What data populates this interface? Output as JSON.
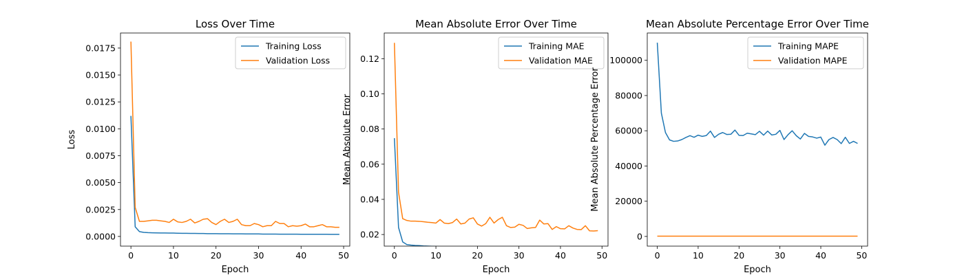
{
  "chart_data": [
    {
      "type": "line",
      "title": "Loss Over Time",
      "xlabel": "Epoch",
      "ylabel": "Loss",
      "xlim": [
        -2.45,
        51.45
      ],
      "ylim": [
        -0.0009,
        0.0189
      ],
      "xticks": [
        0,
        10,
        20,
        30,
        40,
        50
      ],
      "xtick_labels": [
        "0",
        "10",
        "20",
        "30",
        "40",
        "50"
      ],
      "yticks": [
        0.0,
        0.0025,
        0.005,
        0.0075,
        0.01,
        0.0125,
        0.015,
        0.0175
      ],
      "ytick_labels": [
        "0.0000",
        "0.0025",
        "0.0050",
        "0.0075",
        "0.0100",
        "0.0125",
        "0.0150",
        "0.0175"
      ],
      "legend": "upper-right",
      "grid": false,
      "series": [
        {
          "name": "Training Loss",
          "color": "#1f77b4",
          "x": [
            0,
            1,
            2,
            3,
            4,
            5,
            6,
            7,
            8,
            9,
            10,
            11,
            12,
            13,
            14,
            15,
            16,
            17,
            18,
            19,
            20,
            21,
            22,
            23,
            24,
            25,
            26,
            27,
            28,
            29,
            30,
            31,
            32,
            33,
            34,
            35,
            36,
            37,
            38,
            39,
            40,
            41,
            42,
            43,
            44,
            45,
            46,
            47,
            48,
            49
          ],
          "values": [
            0.0112,
            0.0009,
            0.00045,
            0.00038,
            0.00035,
            0.00034,
            0.00033,
            0.00032,
            0.00032,
            0.00031,
            0.00031,
            0.0003,
            0.00029,
            0.00029,
            0.00028,
            0.00028,
            0.00027,
            0.00027,
            0.00026,
            0.00026,
            0.00026,
            0.00025,
            0.00025,
            0.00025,
            0.00024,
            0.00024,
            0.00024,
            0.00023,
            0.00023,
            0.00023,
            0.00023,
            0.00022,
            0.00022,
            0.00022,
            0.00022,
            0.00021,
            0.00021,
            0.00021,
            0.00021,
            0.00021,
            0.0002,
            0.0002,
            0.0002,
            0.0002,
            0.0002,
            0.0002,
            0.0002,
            0.00019,
            0.00019,
            0.00019
          ]
        },
        {
          "name": "Validation Loss",
          "color": "#ff7f0e",
          "x": [
            0,
            1,
            2,
            3,
            4,
            5,
            6,
            7,
            8,
            9,
            10,
            11,
            12,
            13,
            14,
            15,
            16,
            17,
            18,
            19,
            20,
            21,
            22,
            23,
            24,
            25,
            26,
            27,
            28,
            29,
            30,
            31,
            32,
            33,
            34,
            35,
            36,
            37,
            38,
            39,
            40,
            41,
            42,
            43,
            44,
            45,
            46,
            47,
            48,
            49
          ],
          "values": [
            0.0181,
            0.0027,
            0.0014,
            0.0014,
            0.00145,
            0.0015,
            0.0015,
            0.00145,
            0.0014,
            0.0013,
            0.0016,
            0.00135,
            0.0013,
            0.0014,
            0.0016,
            0.00125,
            0.0014,
            0.0016,
            0.00165,
            0.0013,
            0.0011,
            0.0014,
            0.0016,
            0.0013,
            0.0014,
            0.0016,
            0.0011,
            0.001,
            0.001,
            0.0012,
            0.0011,
            0.0009,
            0.001,
            0.001,
            0.0014,
            0.0012,
            0.0012,
            0.0009,
            0.001,
            0.00095,
            0.001,
            0.00115,
            0.0009,
            0.0009,
            0.001,
            0.0011,
            0.0009,
            0.0009,
            0.00085,
            0.00085
          ]
        }
      ]
    },
    {
      "type": "line",
      "title": "Mean Absolute Error Over Time",
      "xlabel": "Epoch",
      "ylabel": "Mean Absolute Error",
      "xlim": [
        -2.45,
        51.45
      ],
      "ylim": [
        0.0134,
        0.1346
      ],
      "xticks": [
        0,
        10,
        20,
        30,
        40,
        50
      ],
      "xtick_labels": [
        "0",
        "10",
        "20",
        "30",
        "40",
        "50"
      ],
      "yticks": [
        0.02,
        0.04,
        0.06,
        0.08,
        0.1,
        0.12
      ],
      "ytick_labels": [
        "0.02",
        "0.04",
        "0.06",
        "0.08",
        "0.10",
        "0.12"
      ],
      "legend": "upper-right",
      "grid": false,
      "series": [
        {
          "name": "Training MAE",
          "color": "#1f77b4",
          "x": [
            0,
            1,
            2,
            3,
            4,
            5,
            6,
            7,
            8,
            9,
            10,
            11,
            12,
            13,
            14,
            15,
            16,
            17,
            18,
            19,
            20,
            21,
            22,
            23,
            24,
            25,
            26,
            27,
            28,
            29,
            30,
            31,
            32,
            33,
            34,
            35,
            36,
            37,
            38,
            39,
            40,
            41,
            42,
            43,
            44,
            45,
            46,
            47,
            48,
            49
          ],
          "values": [
            0.0748,
            0.024,
            0.0158,
            0.0143,
            0.014,
            0.0138,
            0.0137,
            0.0135,
            0.0134,
            0.0133,
            0.0132,
            0.0131,
            0.013,
            0.0129,
            0.0128,
            0.0128,
            0.0126,
            0.0124,
            0.0123,
            0.0123,
            0.0122,
            0.012,
            0.0119,
            0.0122,
            0.0119,
            0.0118,
            0.0118,
            0.0117,
            0.0116,
            0.0117,
            0.0115,
            0.0113,
            0.0113,
            0.0116,
            0.0113,
            0.0112,
            0.011,
            0.0111,
            0.0109,
            0.0109,
            0.0108,
            0.0111,
            0.011,
            0.0106,
            0.0105,
            0.0104,
            0.0106,
            0.0105,
            0.0105,
            0.0106
          ]
        },
        {
          "name": "Validation MAE",
          "color": "#ff7f0e",
          "x": [
            0,
            1,
            2,
            3,
            4,
            5,
            6,
            7,
            8,
            9,
            10,
            11,
            12,
            13,
            14,
            15,
            16,
            17,
            18,
            19,
            20,
            21,
            22,
            23,
            24,
            25,
            26,
            27,
            28,
            29,
            30,
            31,
            32,
            33,
            34,
            35,
            36,
            37,
            38,
            39,
            40,
            41,
            42,
            43,
            44,
            45,
            46,
            47,
            48,
            49
          ],
          "values": [
            0.129,
            0.044,
            0.029,
            0.028,
            0.0276,
            0.0276,
            0.0275,
            0.0273,
            0.027,
            0.0268,
            0.0265,
            0.0285,
            0.0265,
            0.0262,
            0.0268,
            0.0288,
            0.026,
            0.0265,
            0.0288,
            0.0295,
            0.026,
            0.0248,
            0.0262,
            0.0298,
            0.0265,
            0.0285,
            0.0298,
            0.025,
            0.024,
            0.0242,
            0.0258,
            0.0252,
            0.0234,
            0.0238,
            0.024,
            0.0282,
            0.026,
            0.0262,
            0.0229,
            0.0245,
            0.0233,
            0.0232,
            0.025,
            0.0237,
            0.0229,
            0.0228,
            0.025,
            0.0221,
            0.022,
            0.0222
          ]
        }
      ]
    },
    {
      "type": "line",
      "title": "Mean Absolute Percentage Error Over Time",
      "xlabel": "Epoch",
      "ylabel": "Mean Absolute Percentage Error",
      "xlim": [
        -2.45,
        51.45
      ],
      "ylim": [
        -5500,
        115500
      ],
      "xticks": [
        0,
        10,
        20,
        30,
        40,
        50
      ],
      "xtick_labels": [
        "0",
        "10",
        "20",
        "30",
        "40",
        "50"
      ],
      "yticks": [
        0,
        20000,
        40000,
        60000,
        80000,
        100000
      ],
      "ytick_labels": [
        "0",
        "20000",
        "40000",
        "60000",
        "80000",
        "100000"
      ],
      "legend": "upper-right",
      "grid": false,
      "series": [
        {
          "name": "Training MAPE",
          "color": "#1f77b4",
          "x": [
            0,
            1,
            2,
            3,
            4,
            5,
            6,
            7,
            8,
            9,
            10,
            11,
            12,
            13,
            14,
            15,
            16,
            17,
            18,
            19,
            20,
            21,
            22,
            23,
            24,
            25,
            26,
            27,
            28,
            29,
            30,
            31,
            32,
            33,
            34,
            35,
            36,
            37,
            38,
            39,
            40,
            41,
            42,
            43,
            44,
            45,
            46,
            47,
            48,
            49
          ],
          "values": [
            110000,
            70000,
            59000,
            54800,
            54000,
            54200,
            55000,
            56200,
            57200,
            56300,
            57500,
            56800,
            57300,
            59800,
            56200,
            58000,
            59000,
            57900,
            58000,
            60400,
            57400,
            57300,
            58600,
            58200,
            57800,
            59700,
            57500,
            59800,
            57600,
            58000,
            60200,
            55000,
            57800,
            60000,
            57200,
            55300,
            58500,
            56800,
            56500,
            55800,
            56400,
            51800,
            55000,
            56200,
            55000,
            52700,
            56300,
            52800,
            54000,
            52800
          ]
        },
        {
          "name": "Validation MAPE",
          "color": "#ff7f0e",
          "x": [
            0,
            1,
            2,
            3,
            4,
            5,
            6,
            7,
            8,
            9,
            10,
            11,
            12,
            13,
            14,
            15,
            16,
            17,
            18,
            19,
            20,
            21,
            22,
            23,
            24,
            25,
            26,
            27,
            28,
            29,
            30,
            31,
            32,
            33,
            34,
            35,
            36,
            37,
            38,
            39,
            40,
            41,
            42,
            43,
            44,
            45,
            46,
            47,
            48,
            49
          ],
          "values": [
            150,
            150,
            150,
            150,
            150,
            150,
            150,
            150,
            150,
            150,
            150,
            150,
            150,
            150,
            150,
            150,
            150,
            150,
            150,
            150,
            150,
            150,
            150,
            150,
            150,
            150,
            150,
            150,
            150,
            150,
            150,
            150,
            150,
            150,
            150,
            150,
            150,
            150,
            150,
            150,
            150,
            150,
            150,
            150,
            150,
            150,
            150,
            150,
            150,
            150
          ]
        }
      ]
    }
  ]
}
